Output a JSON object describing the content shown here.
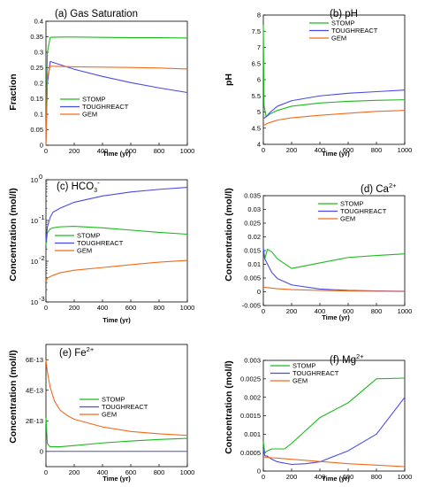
{
  "chart_data": [
    {
      "type": "line",
      "title": "(a) Gas Saturation",
      "xlabel": "Time (yr)",
      "ylabel": "Fraction",
      "xlim": [
        0,
        1000
      ],
      "ylim": [
        0,
        0.4
      ],
      "xticks": [
        "0",
        "200",
        "400",
        "600",
        "800",
        "1000"
      ],
      "yticks": [
        "0",
        "0.05",
        "0.1",
        "0.15",
        "0.2",
        "0.25",
        "0.3",
        "0.35",
        "0.4"
      ],
      "legend": "bottom-left",
      "series": [
        {
          "name": "STOMP",
          "color": "#1db91d",
          "x": [
            0,
            10,
            30,
            100,
            200,
            400,
            600,
            800,
            1000
          ],
          "y": [
            0,
            0.3,
            0.348,
            0.349,
            0.349,
            0.348,
            0.347,
            0.347,
            0.346
          ]
        },
        {
          "name": "TOUGHREACT",
          "color": "#4a4ae6",
          "x": [
            0,
            10,
            30,
            100,
            200,
            400,
            600,
            800,
            1000
          ],
          "y": [
            0,
            0.2,
            0.27,
            0.26,
            0.245,
            0.222,
            0.202,
            0.185,
            0.17
          ]
        },
        {
          "name": "GEM",
          "color": "#f26a1b",
          "x": [
            0,
            10,
            30,
            100,
            200,
            400,
            600,
            800,
            1000
          ],
          "y": [
            0,
            0.22,
            0.255,
            0.254,
            0.253,
            0.252,
            0.251,
            0.249,
            0.246
          ]
        }
      ]
    },
    {
      "type": "line",
      "title": "(b) pH",
      "xlabel": "Time (yr)",
      "ylabel": "pH",
      "xlim": [
        0,
        1000
      ],
      "ylim": [
        4,
        8
      ],
      "xticks": [
        "0",
        "200",
        "400",
        "600",
        "800",
        "1000"
      ],
      "yticks": [
        "4",
        "4.5",
        "5",
        "5.5",
        "6",
        "6.5",
        "7",
        "7.5",
        "8"
      ],
      "legend": "top-right",
      "series": [
        {
          "name": "STOMP",
          "color": "#1db91d",
          "x": [
            0,
            5,
            20,
            50,
            100,
            200,
            400,
            600,
            800,
            1000
          ],
          "y": [
            7.7,
            5.2,
            4.85,
            4.95,
            5.05,
            5.18,
            5.28,
            5.33,
            5.36,
            5.38
          ]
        },
        {
          "name": "TOUGHREACT",
          "color": "#4a4ae6",
          "x": [
            0,
            10,
            30,
            50,
            100,
            200,
            400,
            600,
            800,
            1000
          ],
          "y": [
            4.8,
            4.82,
            4.9,
            5.0,
            5.18,
            5.35,
            5.5,
            5.58,
            5.63,
            5.68
          ]
        },
        {
          "name": "GEM",
          "color": "#f26a1b",
          "x": [
            0,
            10,
            30,
            50,
            100,
            200,
            400,
            600,
            800,
            1000
          ],
          "y": [
            4.6,
            4.6,
            4.65,
            4.68,
            4.75,
            4.82,
            4.9,
            4.96,
            5.02,
            5.05
          ]
        }
      ]
    },
    {
      "type": "line",
      "title": "(c) HCO",
      "title_sub": "3",
      "title_sup": "-",
      "xlabel": "Time (yr)",
      "ylabel": "Concentration (mol/l)",
      "xlim": [
        0,
        1000
      ],
      "ylim": [
        0.001,
        1
      ],
      "log_y": true,
      "xticks": [
        "0",
        "200",
        "400",
        "600",
        "800",
        "1000"
      ],
      "yticks_mantissa": [
        "10",
        "10",
        "10",
        "10"
      ],
      "yticks_exponent": [
        "-3",
        "-2",
        "-1",
        "0"
      ],
      "legend": "center-right",
      "series": [
        {
          "name": "STOMP",
          "color": "#1db91d",
          "x": [
            0,
            10,
            30,
            50,
            100,
            200,
            400,
            600,
            800,
            1000
          ],
          "y": [
            0.025,
            0.05,
            0.062,
            0.066,
            0.07,
            0.072,
            0.066,
            0.058,
            0.051,
            0.046
          ]
        },
        {
          "name": "TOUGHREACT",
          "color": "#4a4ae6",
          "x": [
            0,
            10,
            30,
            50,
            100,
            200,
            400,
            600,
            800,
            1000
          ],
          "y": [
            0.03,
            0.07,
            0.12,
            0.16,
            0.2,
            0.28,
            0.4,
            0.5,
            0.58,
            0.65
          ]
        },
        {
          "name": "GEM",
          "color": "#f26a1b",
          "x": [
            0,
            10,
            30,
            50,
            100,
            200,
            400,
            600,
            800,
            1000
          ],
          "y": [
            0.0033,
            0.0038,
            0.0042,
            0.0045,
            0.0052,
            0.006,
            0.007,
            0.0082,
            0.0095,
            0.0105
          ]
        }
      ]
    },
    {
      "type": "line",
      "title": "(d) Ca",
      "title_sup": "2+",
      "xlabel": "Time (yr)",
      "ylabel": "Concentration (mol/l)",
      "xlim": [
        0,
        1000
      ],
      "ylim": [
        -0.005,
        0.035
      ],
      "xticks": [
        "0",
        "200",
        "400",
        "600",
        "800",
        "1000"
      ],
      "yticks": [
        "-0.005",
        "0",
        "0.005",
        "0.01",
        "0.015",
        "0.02",
        "0.025",
        "0.03",
        "0.035"
      ],
      "legend": "top-right",
      "series": [
        {
          "name": "STOMP",
          "color": "#1db91d",
          "x": [
            0,
            10,
            30,
            60,
            100,
            200,
            400,
            600,
            800,
            1000
          ],
          "y": [
            0.016,
            0.012,
            0.0155,
            0.0145,
            0.012,
            0.0085,
            0.0105,
            0.0125,
            0.0132,
            0.0138
          ]
        },
        {
          "name": "TOUGHREACT",
          "color": "#4a4ae6",
          "x": [
            0,
            10,
            30,
            60,
            100,
            200,
            400,
            600,
            800,
            1000
          ],
          "y": [
            0.016,
            0.012,
            0.01,
            0.007,
            0.0048,
            0.0025,
            0.001,
            0.0005,
            0.0003,
            0.0002
          ]
        },
        {
          "name": "GEM",
          "color": "#f26a1b",
          "x": [
            0,
            10,
            30,
            60,
            100,
            200,
            400,
            600,
            800,
            1000
          ],
          "y": [
            0.0018,
            0.0016,
            0.0015,
            0.0013,
            0.0011,
            0.0008,
            0.0005,
            0.0003,
            0.0002,
            0.0001
          ]
        }
      ]
    },
    {
      "type": "line",
      "title": "(e) Fe",
      "title_sup": "2+",
      "xlabel": "Time (yr)",
      "ylabel": "Concentration (mol/l)",
      "xlim": [
        0,
        1000
      ],
      "ylim": [
        -1e-13,
        7e-13
      ],
      "xticks": [
        "0",
        "200",
        "400",
        "600",
        "800",
        "1000"
      ],
      "yticks": [
        "0",
        "2E-13",
        "4E-13",
        "6E-13"
      ],
      "yticks_values": [
        0,
        2e-13,
        4e-13,
        6e-13
      ],
      "legend": "center-right",
      "series": [
        {
          "name": "STOMP",
          "color": "#1db91d",
          "x": [
            0,
            10,
            30,
            60,
            100,
            200,
            400,
            600,
            800,
            1000
          ],
          "y": [
            2.2e-13,
            5e-14,
            3e-14,
            3e-14,
            3e-14,
            3.8e-14,
            5.5e-14,
            6.8e-14,
            7.8e-14,
            8.5e-14
          ]
        },
        {
          "name": "TOUGHREACT",
          "color": "#4a4ae6",
          "x": [
            0,
            200,
            400,
            600,
            800,
            1000
          ],
          "y": [
            0,
            0,
            0,
            0,
            0,
            0
          ]
        },
        {
          "name": "GEM",
          "color": "#f26a1b",
          "x": [
            0,
            10,
            30,
            60,
            100,
            150,
            200,
            400,
            600,
            800,
            1000
          ],
          "y": [
            6e-13,
            5.2e-13,
            4.2e-13,
            3.3e-13,
            2.7e-13,
            2.35e-13,
            2.1e-13,
            1.6e-13,
            1.3e-13,
            1.15e-13,
            1.05e-13
          ]
        }
      ]
    },
    {
      "type": "line",
      "title": "(f) Mg",
      "title_sup": "2+",
      "xlabel": "Time (yr)",
      "ylabel": "Concentration (mol/l)",
      "xlim": [
        0,
        1000
      ],
      "ylim": [
        0,
        0.003
      ],
      "xticks": [
        "0",
        "200",
        "400",
        "600",
        "800",
        "1000"
      ],
      "yticks": [
        "0",
        "0.0005",
        "0.001",
        "0.0015",
        "0.002",
        "0.0025",
        "0.003"
      ],
      "legend": "top-center",
      "series": [
        {
          "name": "STOMP",
          "color": "#1db91d",
          "x": [
            0,
            10,
            30,
            60,
            100,
            150,
            200,
            400,
            600,
            800,
            1000
          ],
          "y": [
            0.0008,
            0.0005,
            0.00055,
            0.0006,
            0.0006,
            0.0006,
            0.00075,
            0.00145,
            0.00185,
            0.0025,
            0.00252
          ]
        },
        {
          "name": "TOUGHREACT",
          "color": "#4a4ae6",
          "x": [
            0,
            10,
            30,
            60,
            100,
            200,
            300,
            400,
            600,
            800,
            1000
          ],
          "y": [
            0.0006,
            0.00042,
            0.0004,
            0.00032,
            0.00025,
            0.00018,
            0.0002,
            0.00025,
            0.00055,
            0.001,
            0.002
          ]
        },
        {
          "name": "GEM",
          "color": "#f26a1b",
          "x": [
            0,
            10,
            30,
            60,
            100,
            200,
            400,
            600,
            800,
            1000
          ],
          "y": [
            0.0004,
            0.00038,
            0.00037,
            0.00036,
            0.00035,
            0.00032,
            0.00026,
            0.0002,
            0.00016,
            0.00012
          ]
        }
      ]
    }
  ]
}
